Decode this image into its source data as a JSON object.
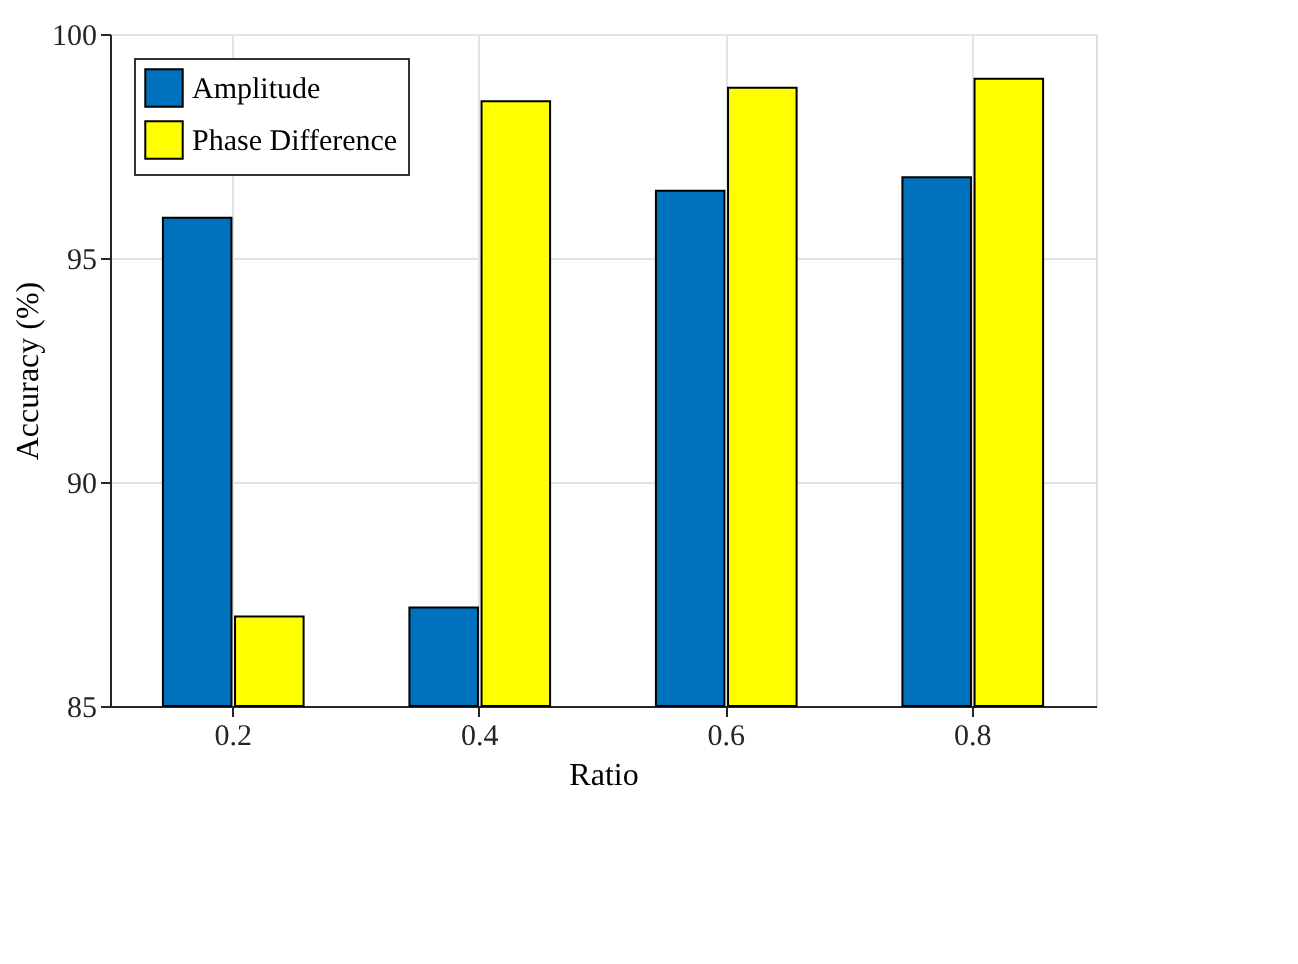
{
  "chart_data": {
    "type": "bar",
    "xlabel": "Ratio",
    "ylabel": "Accuracy (%)",
    "categories": [
      "0.2",
      "0.4",
      "0.6",
      "0.8"
    ],
    "series": [
      {
        "name": "Amplitude",
        "color": "#0072bd",
        "values": [
          95.9,
          87.2,
          96.5,
          96.8
        ]
      },
      {
        "name": "Phase Difference",
        "color": "#ffff00",
        "values": [
          87.0,
          98.5,
          98.8,
          99.0
        ]
      }
    ],
    "ylim": [
      85,
      100
    ],
    "yticks": [
      85,
      90,
      95,
      100
    ],
    "grid": true,
    "legend": "top left"
  }
}
